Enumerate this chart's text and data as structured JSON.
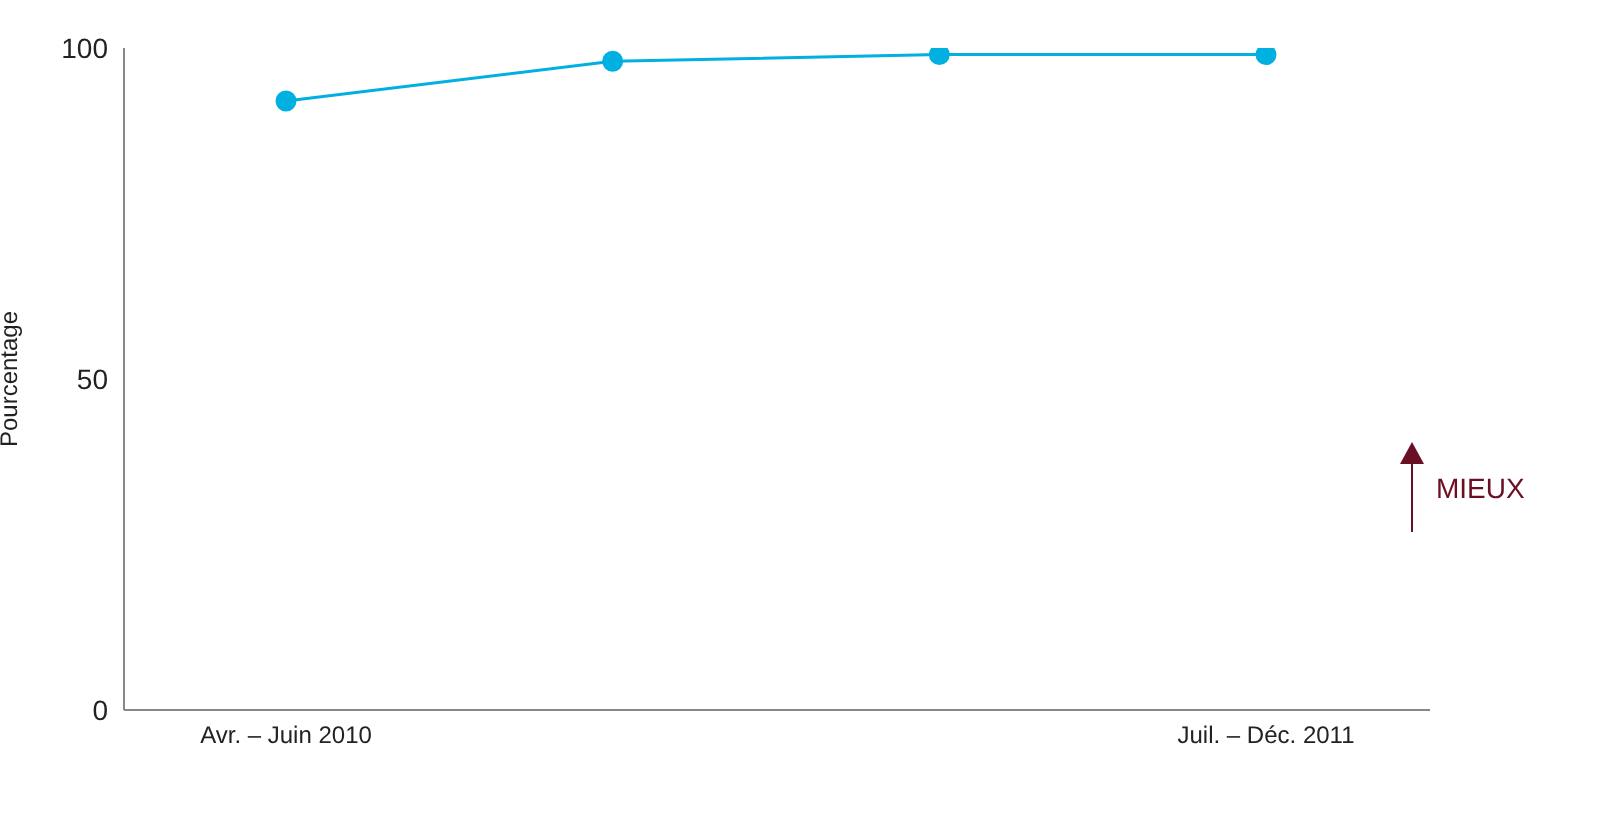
{
  "chart_data": {
    "type": "line",
    "ylabel": "Pourcentage",
    "categories": [
      "Avr. – Juin 2010",
      null,
      null,
      "Juil. – Déc. 2011"
    ],
    "series": [
      {
        "color": "#00b0e0",
        "values": [
          92,
          98,
          99,
          99
        ]
      }
    ],
    "ylim": [
      0,
      100
    ],
    "yticks": [
      0,
      50,
      100
    ],
    "grid": false,
    "legend": false,
    "marker": "circle",
    "line_style": "solid",
    "annotations": [
      "MIEUX"
    ]
  }
}
